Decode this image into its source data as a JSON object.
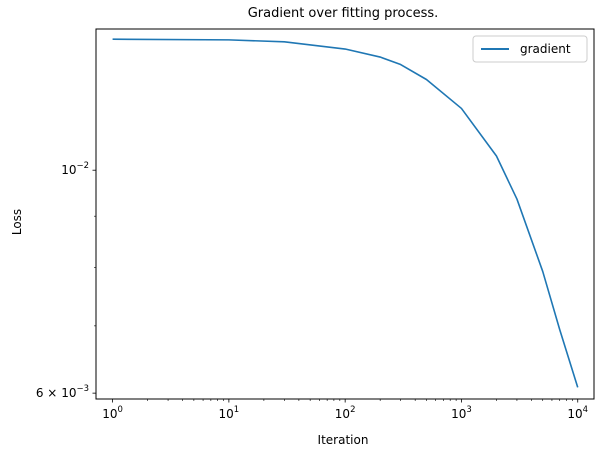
{
  "chart_data": {
    "type": "line",
    "title": "Gradient over fitting process.",
    "xlabel": "Iteration",
    "ylabel": "Loss",
    "x_scale": "log",
    "y_scale": "log",
    "xlim": [
      0.72,
      13800
    ],
    "ylim": [
      0.00592,
      0.01382
    ],
    "x_ticks": [
      {
        "value": 1,
        "base": "10",
        "exp": "0"
      },
      {
        "value": 10,
        "base": "10",
        "exp": "1"
      },
      {
        "value": 100,
        "base": "10",
        "exp": "2"
      },
      {
        "value": 1000,
        "base": "10",
        "exp": "3"
      },
      {
        "value": 10000,
        "base": "10",
        "exp": "4"
      }
    ],
    "y_ticks": [
      {
        "value": 0.01,
        "prefix": "",
        "base": "10",
        "exp": "−2"
      },
      {
        "value": 0.006,
        "prefix": "6 × ",
        "base": "10",
        "exp": "−3"
      }
    ],
    "y_minor_ticks": [
      0.007,
      0.008,
      0.009
    ],
    "grid": false,
    "legend_position": "top-right",
    "series": [
      {
        "name": "gradient",
        "color": "#1f77b4",
        "x": [
          1,
          10,
          30,
          100,
          200,
          300,
          500,
          1000,
          2000,
          3000,
          5000,
          7000,
          10000
        ],
        "y": [
          0.0135,
          0.01348,
          0.01342,
          0.0132,
          0.01296,
          0.01274,
          0.01231,
          0.01152,
          0.01033,
          0.00936,
          0.00793,
          0.00694,
          0.00608
        ]
      }
    ]
  }
}
